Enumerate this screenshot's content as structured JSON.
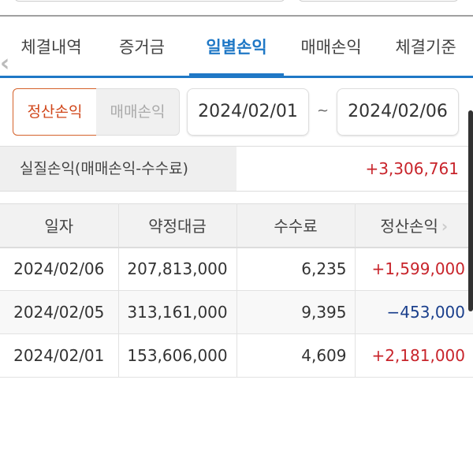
{
  "tabs": [
    "체결내역",
    "증거금",
    "일별손익",
    "매매손익",
    "체결기준"
  ],
  "active_tab": 2,
  "toggle": {
    "selected": "정산손익",
    "other": "매매손익"
  },
  "date_range": {
    "from": "2024/02/01",
    "sep": "~",
    "to": "2024/02/06"
  },
  "summary": {
    "label": "실질손익(매매손익-수수료)",
    "value": "+3,306,761"
  },
  "table": {
    "headers": [
      "일자",
      "약정대금",
      "수수료",
      "정산손익"
    ],
    "rows": [
      [
        "2024/02/06",
        "207,813,000",
        "6,235",
        "+1,599,000"
      ],
      [
        "2024/02/05",
        "313,161,000",
        "9,395",
        "−453,000"
      ],
      [
        "2024/02/01",
        "153,606,000",
        "4,609",
        "+2,181,000"
      ]
    ]
  },
  "colors": {
    "accent": "#1f78c6",
    "positive": "#c8242b",
    "negative": "#1a3f8c",
    "toggle_active": "#d0461a"
  }
}
